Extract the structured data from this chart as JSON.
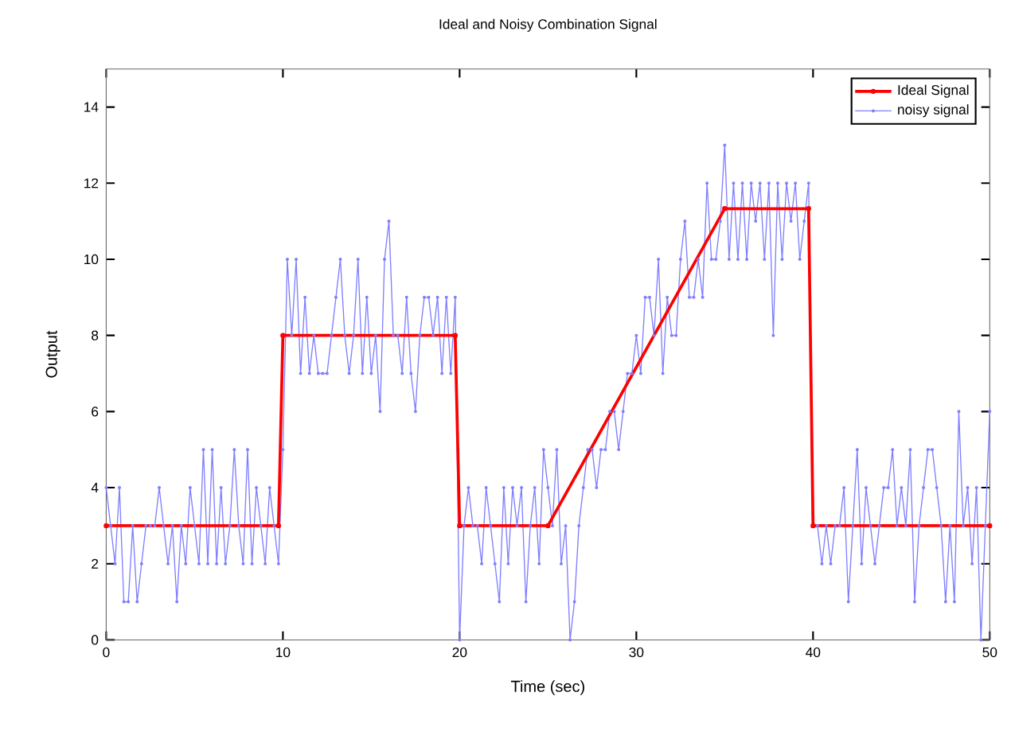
{
  "chart_data": {
    "type": "line",
    "title": "Ideal and Noisy Combination Signal",
    "xlabel": "Time (sec)",
    "ylabel": "Output",
    "xlim": [
      0,
      50
    ],
    "ylim": [
      0,
      15
    ],
    "xticks": [
      0,
      10,
      20,
      30,
      40,
      50
    ],
    "yticks": [
      0,
      2,
      4,
      6,
      8,
      10,
      12,
      14
    ],
    "grid": false,
    "legend": "top right",
    "marker": "circle",
    "line_style": "solid",
    "series": [
      {
        "name": "Ideal Signal",
        "color": "#ff0000",
        "x": [
          0,
          9.75,
          10,
          19.75,
          20,
          25,
          35,
          39.75,
          40,
          50
        ],
        "values": [
          3,
          3,
          8,
          8,
          3,
          3,
          11.33,
          11.33,
          3,
          3
        ]
      },
      {
        "name": "noisy signal",
        "color": "#7f7fff",
        "x": [
          0,
          0.25,
          0.5,
          0.75,
          1,
          1.25,
          1.5,
          1.75,
          2,
          2.25,
          2.5,
          2.75,
          3,
          3.25,
          3.5,
          3.75,
          4,
          4.25,
          4.5,
          4.75,
          5,
          5.25,
          5.5,
          5.75,
          6,
          6.25,
          6.5,
          6.75,
          7,
          7.25,
          7.5,
          7.75,
          8,
          8.25,
          8.5,
          8.75,
          9,
          9.25,
          9.5,
          9.75,
          10,
          10.25,
          10.5,
          10.75,
          11,
          11.25,
          11.5,
          11.75,
          12,
          12.25,
          12.5,
          12.75,
          13,
          13.25,
          13.5,
          13.75,
          14,
          14.25,
          14.5,
          14.75,
          15,
          15.25,
          15.5,
          15.75,
          16,
          16.25,
          16.5,
          16.75,
          17,
          17.25,
          17.5,
          17.75,
          18,
          18.25,
          18.5,
          18.75,
          19,
          19.25,
          19.5,
          19.75,
          20,
          20.25,
          20.5,
          20.75,
          21,
          21.25,
          21.5,
          21.75,
          22,
          22.25,
          22.5,
          22.75,
          23,
          23.25,
          23.5,
          23.75,
          24,
          24.25,
          24.5,
          24.75,
          25,
          25.25,
          25.5,
          25.75,
          26,
          26.25,
          26.5,
          26.75,
          27,
          27.25,
          27.5,
          27.75,
          28,
          28.25,
          28.5,
          28.75,
          29,
          29.25,
          29.5,
          29.75,
          30,
          30.25,
          30.5,
          30.75,
          31,
          31.25,
          31.5,
          31.75,
          32,
          32.25,
          32.5,
          32.75,
          33,
          33.25,
          33.5,
          33.75,
          34,
          34.25,
          34.5,
          34.75,
          35,
          35.25,
          35.5,
          35.75,
          36,
          36.25,
          36.5,
          36.75,
          37,
          37.25,
          37.5,
          37.75,
          38,
          38.25,
          38.5,
          38.75,
          39,
          39.25,
          39.5,
          39.75,
          40,
          40.25,
          40.5,
          40.75,
          41,
          41.25,
          41.5,
          41.75,
          42,
          42.25,
          42.5,
          42.75,
          43,
          43.25,
          43.5,
          43.75,
          44,
          44.25,
          44.5,
          44.75,
          45,
          45.25,
          45.5,
          45.75,
          46,
          46.25,
          46.5,
          46.75,
          47,
          47.25,
          47.5,
          47.75,
          48,
          48.25,
          48.5,
          48.75,
          49,
          49.25,
          49.5,
          49.75,
          50
        ],
        "values": [
          4,
          3,
          2,
          4,
          1,
          1,
          3,
          1,
          2,
          3,
          3,
          3,
          4,
          3,
          2,
          3,
          1,
          3,
          2,
          4,
          3,
          2,
          5,
          2,
          5,
          2,
          4,
          2,
          3,
          5,
          3,
          2,
          5,
          2,
          4,
          3,
          2,
          4,
          3,
          2,
          5,
          10,
          8,
          10,
          7,
          9,
          7,
          8,
          7,
          7,
          7,
          8,
          9,
          10,
          8,
          7,
          8,
          10,
          7,
          9,
          7,
          8,
          6,
          10,
          11,
          8,
          8,
          7,
          9,
          7,
          6,
          8,
          9,
          9,
          8,
          9,
          7,
          9,
          7,
          9,
          0,
          3,
          4,
          3,
          3,
          2,
          4,
          3,
          2,
          1,
          4,
          2,
          4,
          3,
          4,
          1,
          3,
          4,
          2,
          5,
          4,
          3,
          5,
          2,
          3,
          0,
          1,
          3,
          4,
          5,
          5,
          4,
          5,
          5,
          6,
          6,
          5,
          6,
          7,
          7,
          8,
          7,
          9,
          9,
          8,
          10,
          7,
          9,
          8,
          8,
          10,
          11,
          9,
          9,
          10,
          9,
          12,
          10,
          10,
          11,
          13,
          10,
          12,
          10,
          12,
          10,
          12,
          11,
          12,
          10,
          12,
          8,
          12,
          10,
          12,
          11,
          12,
          10,
          11,
          12,
          3,
          3,
          2,
          3,
          2,
          3,
          3,
          4,
          1,
          3,
          5,
          2,
          4,
          3,
          2,
          3,
          4,
          4,
          5,
          3,
          4,
          3,
          5,
          1,
          3,
          4,
          5,
          5,
          4,
          3,
          1,
          3,
          1,
          6,
          3,
          4,
          2,
          4,
          0,
          3,
          6
        ]
      }
    ]
  }
}
